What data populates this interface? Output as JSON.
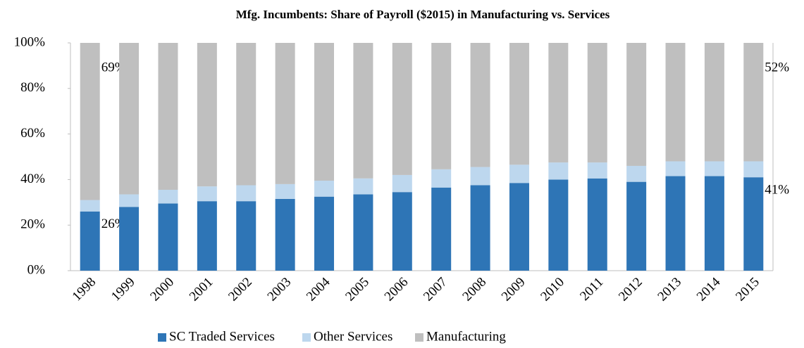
{
  "chart_data": {
    "type": "stacked_bar",
    "title": "Mfg. Incumbents:  Share of Payroll ($2015) in Manufacturing  vs. Services",
    "categories": [
      "1998",
      "1999",
      "2000",
      "2001",
      "2002",
      "2003",
      "2004",
      "2005",
      "2006",
      "2007",
      "2008",
      "2009",
      "2010",
      "2011",
      "2012",
      "2013",
      "2014",
      "2015"
    ],
    "series": [
      {
        "name": "SC Traded Services",
        "color": "#2e75b6",
        "values": [
          26,
          28,
          29.5,
          30.5,
          30.5,
          31.5,
          32.5,
          33.5,
          34.5,
          36.5,
          37.5,
          38.5,
          40,
          40.5,
          39,
          41.5,
          41.5,
          41
        ],
        "value_labels": [
          "26%",
          null,
          null,
          null,
          null,
          null,
          null,
          null,
          null,
          null,
          null,
          null,
          null,
          null,
          null,
          null,
          null,
          "41%"
        ]
      },
      {
        "name": "Other Services",
        "color": "#bdd7ee",
        "values": [
          5,
          5.5,
          6,
          6.5,
          7,
          6.5,
          7,
          7,
          7.5,
          8,
          8,
          8,
          7.5,
          7,
          7,
          6.5,
          6.5,
          7
        ]
      },
      {
        "name": "Manufacturing",
        "color": "#bfbfbf",
        "values": [
          69,
          66.5,
          64.5,
          63,
          62.5,
          62,
          60.5,
          59.5,
          58,
          55.5,
          54.5,
          53.5,
          52.5,
          52.5,
          54,
          52,
          52,
          52
        ],
        "value_labels": [
          "69%",
          null,
          null,
          null,
          null,
          null,
          null,
          null,
          null,
          null,
          null,
          null,
          null,
          null,
          null,
          null,
          null,
          "52%"
        ]
      }
    ],
    "ylim": [
      0,
      100
    ],
    "yticks": [
      {
        "value": 0,
        "label": "0%"
      },
      {
        "value": 20,
        "label": "20%"
      },
      {
        "value": 40,
        "label": "40%"
      },
      {
        "value": 60,
        "label": "60%"
      },
      {
        "value": 80,
        "label": "80%"
      },
      {
        "value": 100,
        "label": "100%"
      }
    ],
    "legend": "bottom"
  }
}
